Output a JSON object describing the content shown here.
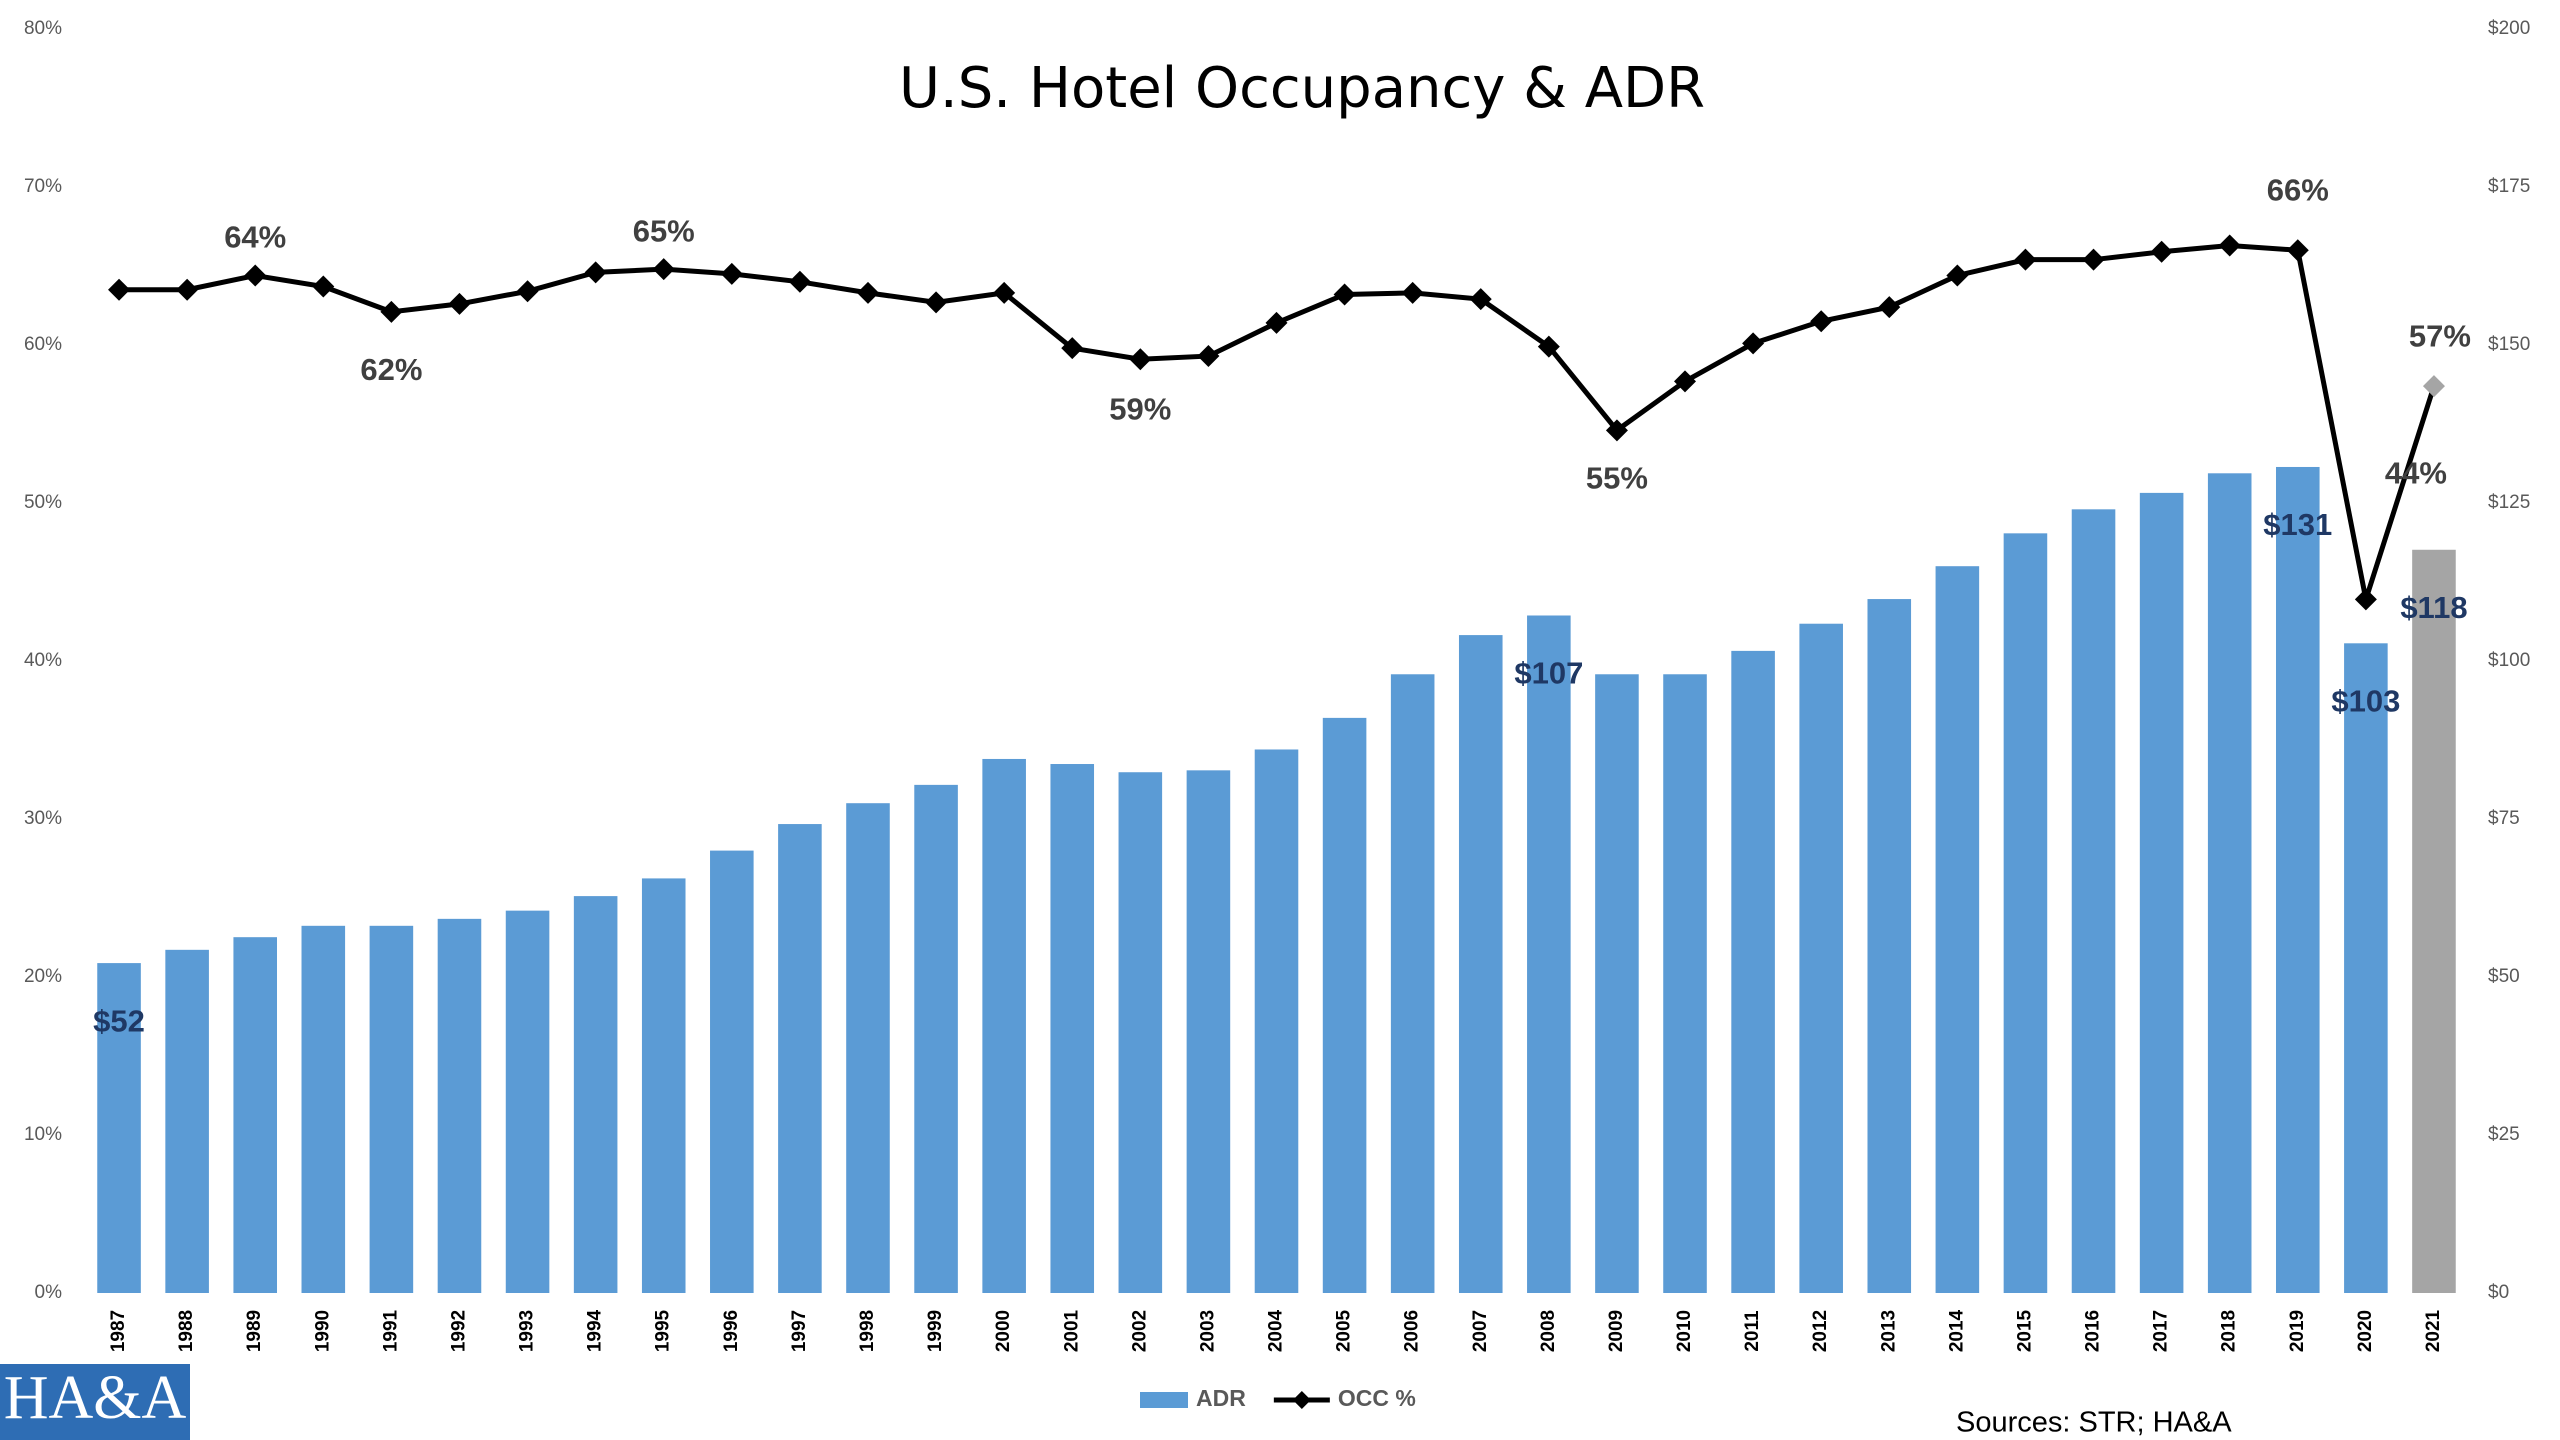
{
  "chart_data": {
    "type": "bar_line",
    "title": "U.S. Hotel Occupancy & ADR",
    "categories": [
      "1987",
      "1988",
      "1989",
      "1990",
      "1991",
      "1992",
      "1993",
      "1994",
      "1995",
      "1996",
      "1997",
      "1998",
      "1999",
      "2000",
      "2001",
      "2002",
      "2003",
      "2004",
      "2005",
      "2006",
      "2007",
      "2008",
      "2009",
      "2010",
      "2011",
      "2012",
      "2013",
      "2014",
      "2015",
      "2016",
      "2017",
      "2018",
      "2019",
      "2020",
      "2021"
    ],
    "series": [
      {
        "name": "ADR",
        "type": "bar",
        "axis": "y2",
        "color": "#5b9bd5",
        "colors": [
          "#5b9bd5",
          "#5b9bd5",
          "#5b9bd5",
          "#5b9bd5",
          "#5b9bd5",
          "#5b9bd5",
          "#5b9bd5",
          "#5b9bd5",
          "#5b9bd5",
          "#5b9bd5",
          "#5b9bd5",
          "#5b9bd5",
          "#5b9bd5",
          "#5b9bd5",
          "#5b9bd5",
          "#5b9bd5",
          "#5b9bd5",
          "#5b9bd5",
          "#5b9bd5",
          "#5b9bd5",
          "#5b9bd5",
          "#5b9bd5",
          "#5b9bd5",
          "#5b9bd5",
          "#5b9bd5",
          "#5b9bd5",
          "#5b9bd5",
          "#5b9bd5",
          "#5b9bd5",
          "#5b9bd5",
          "#5b9bd5",
          "#5b9bd5",
          "#5b9bd5",
          "#5b9bd5",
          "#a5a5a5"
        ],
        "values": [
          52.2,
          54.3,
          56.3,
          58.1,
          58.1,
          59.2,
          60.5,
          62.8,
          65.6,
          70.0,
          74.2,
          77.5,
          80.4,
          84.5,
          83.7,
          82.4,
          82.7,
          86.0,
          91.0,
          97.9,
          104.1,
          107.2,
          97.9,
          97.9,
          101.6,
          105.9,
          109.8,
          115.0,
          120.2,
          124.0,
          126.6,
          129.7,
          130.7,
          102.8,
          117.6
        ],
        "value_labels": [
          "$52",
          null,
          null,
          null,
          null,
          null,
          null,
          null,
          null,
          null,
          null,
          null,
          null,
          null,
          null,
          null,
          null,
          null,
          null,
          null,
          null,
          "$107",
          null,
          null,
          null,
          null,
          null,
          null,
          null,
          null,
          null,
          null,
          "$131",
          "$103",
          "$118"
        ]
      },
      {
        "name": "OCC %",
        "type": "line",
        "color": "#000000",
        "colors": [
          "#000000",
          "#000000",
          "#000000",
          "#000000",
          "#000000",
          "#000000",
          "#000000",
          "#000000",
          "#000000",
          "#000000",
          "#000000",
          "#000000",
          "#000000",
          "#000000",
          "#000000",
          "#000000",
          "#000000",
          "#000000",
          "#000000",
          "#000000",
          "#000000",
          "#000000",
          "#000000",
          "#000000",
          "#000000",
          "#000000",
          "#000000",
          "#000000",
          "#000000",
          "#000000",
          "#000000",
          "#000000",
          "#000000",
          "#000000",
          "#a5a5a5"
        ],
        "values": [
          63.5,
          63.5,
          64.4,
          63.7,
          62.1,
          62.6,
          63.4,
          64.6,
          64.8,
          64.5,
          64.0,
          63.3,
          62.7,
          63.3,
          59.8,
          59.1,
          59.3,
          61.4,
          63.2,
          63.3,
          62.9,
          59.9,
          54.6,
          57.7,
          60.1,
          61.5,
          62.4,
          64.4,
          65.4,
          65.4,
          65.9,
          66.3,
          66.0,
          43.9,
          57.4
        ],
        "value_labels": [
          null,
          null,
          "64%",
          null,
          "62%",
          null,
          null,
          null,
          "65%",
          null,
          null,
          null,
          null,
          null,
          null,
          "59%",
          null,
          null,
          null,
          null,
          null,
          null,
          "55%",
          null,
          null,
          null,
          null,
          null,
          null,
          null,
          null,
          null,
          "66%",
          "44%",
          "57%"
        ]
      }
    ],
    "ylim": [
      0,
      80
    ],
    "yticks": [
      {
        "value": 0,
        "label": "0%"
      },
      {
        "value": 10,
        "label": "10%"
      },
      {
        "value": 20,
        "label": "20%"
      },
      {
        "value": 30,
        "label": "30%"
      },
      {
        "value": 40,
        "label": "40%"
      },
      {
        "value": 50,
        "label": "50%"
      },
      {
        "value": 60,
        "label": "60%"
      },
      {
        "value": 70,
        "label": "70%"
      },
      {
        "value": 80,
        "label": "80%"
      }
    ],
    "y2lim": [
      0,
      200
    ],
    "y2ticks": [
      {
        "value": 0,
        "label": "$0"
      },
      {
        "value": 25,
        "label": "$25"
      },
      {
        "value": 50,
        "label": "$50"
      },
      {
        "value": 75,
        "label": "$75"
      },
      {
        "value": 100,
        "label": "$100"
      },
      {
        "value": 125,
        "label": "$125"
      },
      {
        "value": 150,
        "label": "$150"
      },
      {
        "value": 175,
        "label": "$175"
      },
      {
        "value": 200,
        "label": "$200"
      }
    ],
    "grid": false,
    "legend": "bottom",
    "source": "Sources: STR; HA&A",
    "logo": "HA&A"
  }
}
